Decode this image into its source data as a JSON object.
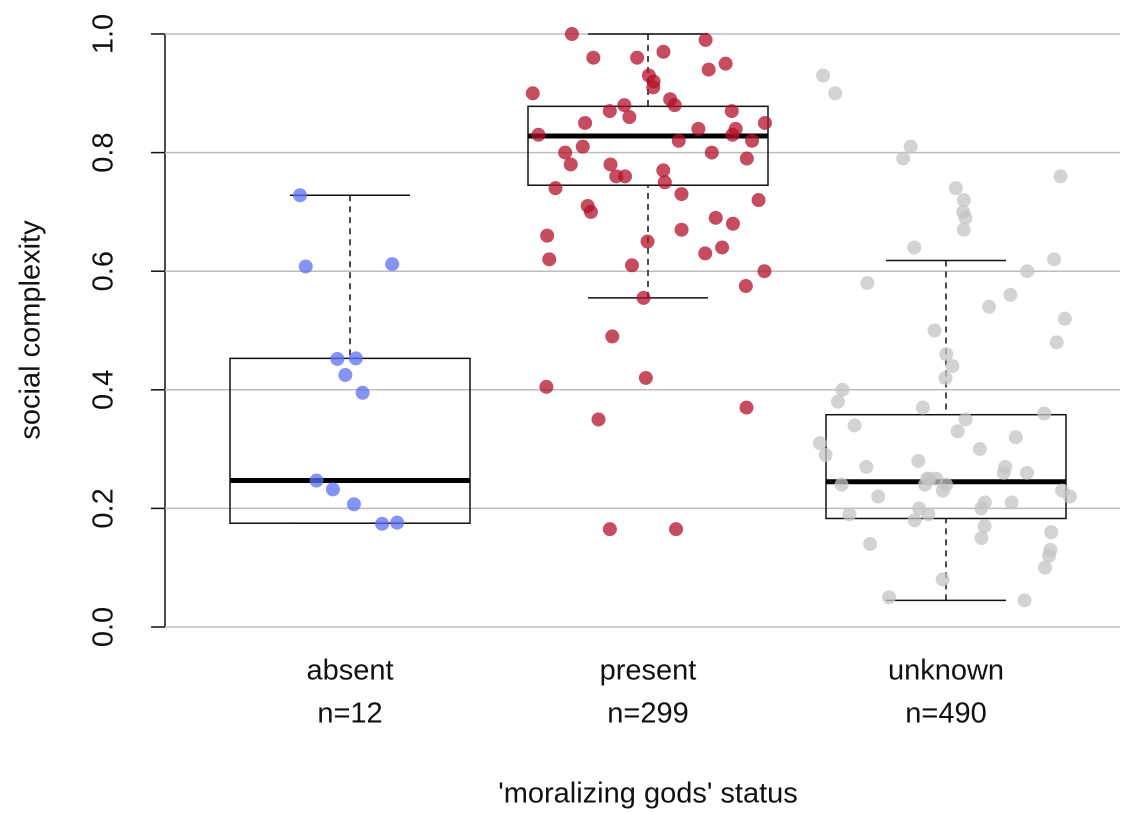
{
  "chart_data": {
    "type": "box",
    "x_label": "'moralizing gods' status",
    "y_label": "social complexity",
    "categories": [
      "absent",
      "present",
      "unknown"
    ],
    "n_labels": [
      "n=12",
      "n=299",
      "n=490"
    ],
    "colors": [
      "#5b6ff0",
      "#b3102a",
      "#c4c4c4"
    ],
    "ylim": [
      0,
      1
    ],
    "yticks": [
      {
        "value": 0,
        "label": "0.0"
      },
      0.2,
      0.4,
      0.6,
      0.8,
      {
        "value": 1,
        "label": "1.0"
      }
    ],
    "grid": true,
    "boxes": [
      {
        "whislo": 0.175,
        "q1": 0.175,
        "med": 0.247,
        "q3": 0.453,
        "whishi": 0.728
      },
      {
        "whislo": 0.555,
        "q1": 0.745,
        "med": 0.828,
        "q3": 0.878,
        "whishi": 1.0
      },
      {
        "whislo": 0.045,
        "q1": 0.183,
        "med": 0.245,
        "q3": 0.358,
        "whishi": 0.618
      }
    ],
    "points": [
      [
        0.728,
        0.612,
        0.608,
        0.453,
        0.452,
        0.425,
        0.395,
        0.247,
        0.232,
        0.207,
        0.176,
        0.174
      ],
      [
        1.0,
        0.99,
        0.97,
        0.96,
        0.96,
        0.95,
        0.94,
        0.93,
        0.92,
        0.91,
        0.9,
        0.89,
        0.88,
        0.88,
        0.87,
        0.87,
        0.86,
        0.85,
        0.85,
        0.84,
        0.84,
        0.83,
        0.83,
        0.82,
        0.82,
        0.81,
        0.8,
        0.8,
        0.79,
        0.78,
        0.78,
        0.77,
        0.76,
        0.76,
        0.75,
        0.74,
        0.73,
        0.72,
        0.71,
        0.7,
        0.69,
        0.68,
        0.67,
        0.66,
        0.65,
        0.64,
        0.63,
        0.62,
        0.61,
        0.6,
        0.575,
        0.555,
        0.49,
        0.42,
        0.405,
        0.37,
        0.35,
        0.165,
        0.165
      ],
      [
        0.93,
        0.9,
        0.81,
        0.79,
        0.76,
        0.74,
        0.72,
        0.7,
        0.69,
        0.67,
        0.64,
        0.62,
        0.6,
        0.58,
        0.56,
        0.54,
        0.52,
        0.5,
        0.48,
        0.46,
        0.44,
        0.42,
        0.4,
        0.38,
        0.37,
        0.36,
        0.35,
        0.34,
        0.33,
        0.32,
        0.31,
        0.3,
        0.29,
        0.28,
        0.27,
        0.27,
        0.26,
        0.26,
        0.25,
        0.25,
        0.25,
        0.24,
        0.24,
        0.24,
        0.23,
        0.23,
        0.22,
        0.22,
        0.21,
        0.21,
        0.2,
        0.2,
        0.19,
        0.19,
        0.18,
        0.17,
        0.16,
        0.15,
        0.14,
        0.13,
        0.12,
        0.1,
        0.08,
        0.05,
        0.045
      ]
    ]
  }
}
